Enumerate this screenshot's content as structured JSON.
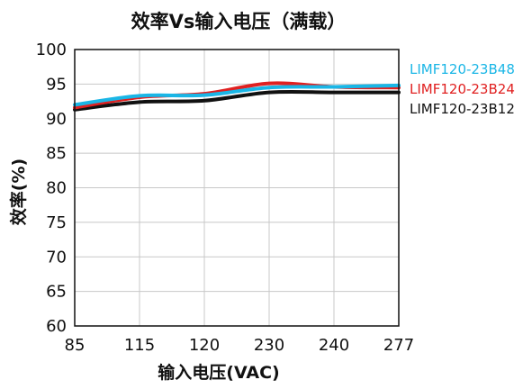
{
  "chart_data": {
    "type": "line",
    "title": "效率Vs输入电压（满载）",
    "xlabel": "输入电压(VAC)",
    "ylabel": "效率(%)",
    "categories": [
      "85",
      "115",
      "120",
      "230",
      "240",
      "277"
    ],
    "ylim": [
      60,
      100
    ],
    "yticks": [
      60,
      65,
      70,
      75,
      80,
      85,
      90,
      95,
      100
    ],
    "grid": {
      "vertical": true,
      "horizontal": true
    },
    "legend_position": "right",
    "series": [
      {
        "name": "LIMF120-23B48",
        "color": "#1ab6e6",
        "values": [
          92.0,
          93.3,
          93.4,
          94.5,
          94.6,
          94.8
        ]
      },
      {
        "name": "LIMF120-23B24",
        "color": "#e02020",
        "values": [
          91.6,
          93.1,
          93.6,
          95.1,
          94.6,
          94.5
        ]
      },
      {
        "name": "LIMF120-23B12",
        "color": "#111111",
        "values": [
          91.3,
          92.4,
          92.6,
          93.8,
          93.8,
          93.8
        ]
      }
    ]
  }
}
